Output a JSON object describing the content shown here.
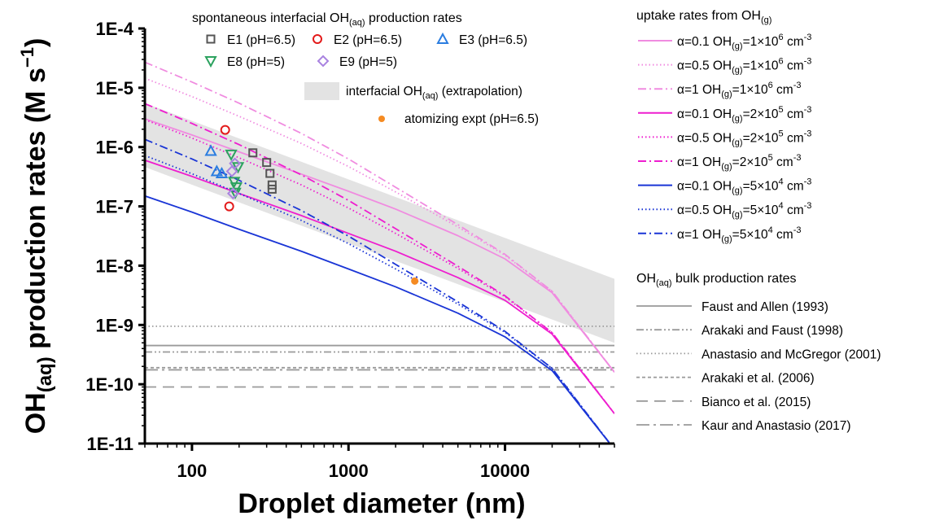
{
  "chart_data": {
    "type": "line",
    "xlabel": "Droplet diameter (nm)",
    "ylabel": {
      "main": "OH",
      "sub": "(aq)",
      "rest": " production rates (M s",
      "sup": "−1",
      "end": ")"
    },
    "xscale": "log",
    "yscale": "log",
    "xlim": [
      50,
      50000
    ],
    "ylim": [
      1e-11,
      0.0001
    ],
    "x_tick_labels": [
      {
        "value": 100,
        "label": "100"
      },
      {
        "value": 1000,
        "label": "1000"
      },
      {
        "value": 10000,
        "label": "10000"
      }
    ],
    "y_tick_labels": [
      {
        "value": 0.0001,
        "label": "1E-4"
      },
      {
        "value": 1e-05,
        "label": "1E-5"
      },
      {
        "value": 1e-06,
        "label": "1E-6"
      },
      {
        "value": 1e-07,
        "label": "1E-7"
      },
      {
        "value": 1e-08,
        "label": "1E-8"
      },
      {
        "value": 1e-09,
        "label": "1E-9"
      },
      {
        "value": 1e-10,
        "label": "1E-10"
      },
      {
        "value": 1e-11,
        "label": "1E-11"
      }
    ],
    "grid": false,
    "band": {
      "name": "interfacial OH(aq) (extrapolation)",
      "color": "#e3e3e3",
      "upper": [
        [
          50,
          5.5e-06
        ],
        [
          50000,
          6e-09
        ]
      ],
      "lower": [
        [
          50,
          4.6e-07
        ],
        [
          50000,
          5e-10
        ]
      ]
    },
    "uptake_series": [
      {
        "alpha": "α=0.1",
        "oh": "1×10",
        "exp": "6",
        "color": "#f08ce0",
        "dash": "solid",
        "points": [
          [
            50,
            3e-06
          ],
          [
            100,
            1.6e-06
          ],
          [
            200,
            8.3e-07
          ],
          [
            500,
            3.5e-07
          ],
          [
            1000,
            1.8e-07
          ],
          [
            2000,
            9e-08
          ],
          [
            5000,
            3.2e-08
          ],
          [
            10000,
            1.3e-08
          ],
          [
            20000,
            3.5e-09
          ],
          [
            50000,
            1.6e-10
          ]
        ]
      },
      {
        "alpha": "α=0.5",
        "oh": "1×10",
        "exp": "6",
        "color": "#f08ce0",
        "dash": "dot",
        "points": [
          [
            50,
            1.45e-05
          ],
          [
            100,
            7.1e-06
          ],
          [
            200,
            3.3e-06
          ],
          [
            500,
            1.15e-06
          ],
          [
            1000,
            4.7e-07
          ],
          [
            2000,
            1.75e-07
          ],
          [
            5000,
            4.5e-08
          ],
          [
            10000,
            1.5e-08
          ],
          [
            20000,
            3.7e-09
          ],
          [
            50000,
            1.6e-10
          ]
        ]
      },
      {
        "alpha": "α=1",
        "oh": "1×10",
        "exp": "6",
        "color": "#f08ce0",
        "dash": "dashdot",
        "points": [
          [
            50,
            2.7e-05
          ],
          [
            100,
            1.25e-05
          ],
          [
            200,
            5.5e-06
          ],
          [
            500,
            1.7e-06
          ],
          [
            1000,
            6.3e-07
          ],
          [
            2000,
            2.1e-07
          ],
          [
            5000,
            4.9e-08
          ],
          [
            10000,
            1.55e-08
          ],
          [
            20000,
            3.7e-09
          ],
          [
            50000,
            1.6e-10
          ]
        ]
      },
      {
        "alpha": "α=0.1",
        "oh": "2×10",
        "exp": "5",
        "color": "#ee1ecf",
        "dash": "solid",
        "points": [
          [
            50,
            6e-07
          ],
          [
            100,
            3.2e-07
          ],
          [
            200,
            1.65e-07
          ],
          [
            500,
            7e-08
          ],
          [
            1000,
            3.5e-08
          ],
          [
            2000,
            1.75e-08
          ],
          [
            5000,
            6.3e-09
          ],
          [
            10000,
            2.6e-09
          ],
          [
            20000,
            7e-10
          ],
          [
            50000,
            3.2e-11
          ]
        ]
      },
      {
        "alpha": "α=0.5",
        "oh": "2×10",
        "exp": "5",
        "color": "#ee1ecf",
        "dash": "dot",
        "points": [
          [
            50,
            2.9e-06
          ],
          [
            100,
            1.42e-06
          ],
          [
            200,
            6.6e-07
          ],
          [
            500,
            2.3e-07
          ],
          [
            1000,
            9.4e-08
          ],
          [
            2000,
            3.5e-08
          ],
          [
            5000,
            9e-09
          ],
          [
            10000,
            3e-09
          ],
          [
            20000,
            7.4e-10
          ],
          [
            50000,
            3.2e-11
          ]
        ]
      },
      {
        "alpha": "α=1",
        "oh": "2×10",
        "exp": "5",
        "color": "#ee1ecf",
        "dash": "dashdot",
        "points": [
          [
            50,
            5.4e-06
          ],
          [
            100,
            2.5e-06
          ],
          [
            200,
            1.1e-06
          ],
          [
            500,
            3.4e-07
          ],
          [
            1000,
            1.26e-07
          ],
          [
            2000,
            4.2e-08
          ],
          [
            5000,
            9.8e-09
          ],
          [
            10000,
            3.1e-09
          ],
          [
            20000,
            7.4e-10
          ],
          [
            50000,
            3.2e-11
          ]
        ]
      },
      {
        "alpha": "α=0.1",
        "oh": "5×10",
        "exp": "4",
        "color": "#1a35d6",
        "dash": "solid",
        "points": [
          [
            50,
            1.5e-07
          ],
          [
            100,
            8e-08
          ],
          [
            200,
            4.1e-08
          ],
          [
            500,
            1.75e-08
          ],
          [
            1000,
            8.8e-09
          ],
          [
            2000,
            4.4e-09
          ],
          [
            5000,
            1.58e-09
          ],
          [
            10000,
            6.3e-10
          ],
          [
            20000,
            1.7e-10
          ],
          [
            50000,
            8e-12
          ]
        ]
      },
      {
        "alpha": "α=0.5",
        "oh": "5×10",
        "exp": "4",
        "color": "#1a35d6",
        "dash": "dot",
        "points": [
          [
            50,
            7.2e-07
          ],
          [
            100,
            3.55e-07
          ],
          [
            200,
            1.65e-07
          ],
          [
            500,
            5.8e-08
          ],
          [
            1000,
            2.35e-08
          ],
          [
            2000,
            8.8e-09
          ],
          [
            5000,
            2.25e-09
          ],
          [
            10000,
            7.5e-10
          ],
          [
            20000,
            1.85e-10
          ],
          [
            50000,
            8e-12
          ]
        ]
      },
      {
        "alpha": "α=1",
        "oh": "5×10",
        "exp": "4",
        "color": "#1a35d6",
        "dash": "dashdot",
        "points": [
          [
            50,
            1.35e-06
          ],
          [
            100,
            6.3e-07
          ],
          [
            200,
            2.75e-07
          ],
          [
            500,
            8.5e-08
          ],
          [
            1000,
            3.15e-08
          ],
          [
            2000,
            1.05e-08
          ],
          [
            5000,
            2.45e-09
          ],
          [
            10000,
            7.8e-10
          ],
          [
            20000,
            1.85e-10
          ],
          [
            50000,
            8e-12
          ]
        ]
      }
    ],
    "bulk_series": [
      {
        "name": "Faust and Allen (1993)",
        "value": 4.5e-10,
        "color": "#9a9a9a",
        "dash": "solid"
      },
      {
        "name": "Arakaki and Faust (1998)",
        "value": 3.5e-10,
        "color": "#9a9a9a",
        "dash": "dashdotdot"
      },
      {
        "name": "Anastasio and McGregor (2001)",
        "value": 9.5e-10,
        "color": "#9a9a9a",
        "dash": "dot"
      },
      {
        "name": "Arakaki et al. (2006)",
        "value": 1.9e-10,
        "color": "#9a9a9a",
        "dash": "shortdash"
      },
      {
        "name": "Bianco et al. (2015)",
        "value": 9e-11,
        "color": "#9a9a9a",
        "dash": "longdash"
      },
      {
        "name": "Kaur and Anastasio (2017)",
        "value": 1.75e-10,
        "color": "#9a9a9a",
        "dash": "longdashdot"
      }
    ],
    "experiments": [
      {
        "name": "E1 (pH=6.5)",
        "marker": "square",
        "color": "#555555",
        "points": [
          [
            245,
            8e-07
          ],
          [
            300,
            5.5e-07
          ],
          [
            315,
            3.6e-07
          ],
          [
            325,
            2.3e-07
          ],
          [
            325,
            1.95e-07
          ]
        ]
      },
      {
        "name": "E2 (pH=6.5)",
        "marker": "circle",
        "color": "#e31a1a",
        "points": [
          [
            163,
            1.95e-06
          ],
          [
            173,
            1e-07
          ]
        ]
      },
      {
        "name": "E3 (pH=6.5)",
        "marker": "triangle-up",
        "color": "#2b7de0",
        "points": [
          [
            132,
            8.6e-07
          ],
          [
            144,
            3.9e-07
          ],
          [
            155,
            3.6e-07
          ]
        ]
      },
      {
        "name": "E8 (pH=5)",
        "marker": "triangle-down",
        "color": "#2ca25f",
        "points": [
          [
            178,
            7.5e-07
          ],
          [
            197,
            4.6e-07
          ],
          [
            186,
            2.6e-07
          ],
          [
            192,
            2.1e-07
          ],
          [
            189,
            1.7e-07
          ]
        ]
      },
      {
        "name": "E9 (pH=5)",
        "marker": "diamond",
        "color": "#a983e0",
        "points": [
          [
            188,
            5.3e-07
          ],
          [
            180,
            3.9e-07
          ],
          [
            183,
            1.65e-07
          ]
        ]
      }
    ],
    "atomizing": {
      "name": "atomizing expt (pH=6.5)",
      "color": "#f58b22",
      "points": [
        [
          2650,
          5.5e-09
        ]
      ]
    },
    "legends": {
      "spontaneous_title": {
        "main": "spontaneous interfacial OH",
        "sub": "(aq)",
        "rest": " production rates"
      },
      "band_label": {
        "main": "interfacial OH",
        "sub": "(aq)",
        "rest": " (extrapolation)"
      },
      "uptake_title": {
        "main": "uptake rates from OH",
        "sub": "(g)"
      },
      "bulk_title": {
        "main": "OH",
        "sub": "(aq)",
        "rest": " bulk production rates"
      }
    }
  }
}
